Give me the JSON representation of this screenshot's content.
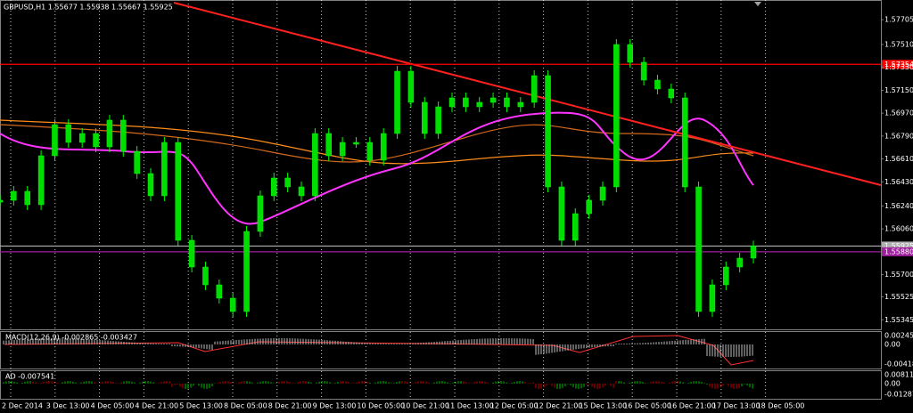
{
  "header": "GBPUSD,H1  1.55677 1.55938 1.55667 1.55925",
  "price_axis": {
    "ylim": [
      1.5527,
      1.5786
    ],
    "ticks": [
      {
        "value": 1.57705,
        "label": "1.57705"
      },
      {
        "value": 1.5751,
        "label": "1.57510"
      },
      {
        "value": 1.5733,
        "label": "1.57330"
      },
      {
        "value": 1.5715,
        "label": "1.57150"
      },
      {
        "value": 1.5697,
        "label": "1.56970"
      },
      {
        "value": 1.5679,
        "label": "1.56790"
      },
      {
        "value": 1.5661,
        "label": "1.56610"
      },
      {
        "value": 1.5643,
        "label": "1.56430"
      },
      {
        "value": 1.5624,
        "label": "1.56240"
      },
      {
        "value": 1.5606,
        "label": "1.56060"
      },
      {
        "value": 1.557,
        "label": "1.55700"
      },
      {
        "value": 1.55525,
        "label": "1.55525"
      },
      {
        "value": 1.55345,
        "label": "1.55345"
      }
    ]
  },
  "levels": [
    {
      "value": 1.57354,
      "label": "1.57354",
      "color": "#ff0000"
    },
    {
      "value": 1.55925,
      "label": "1.55925",
      "color": "#b0b0b0"
    },
    {
      "value": 1.5588,
      "label": "1.55880",
      "color": "#a020a0"
    }
  ],
  "time_axis": [
    "2 Dec 2014",
    "3 Dec 13:00",
    "4 Dec 05:00",
    "4 Dec 21:00",
    "5 Dec 13:00",
    "8 Dec 05:00",
    "8 Dec 21:00",
    "9 Dec 13:00",
    "10 Dec 05:00",
    "10 Dec 21:00",
    "11 Dec 13:00",
    "12 Dec 05:00",
    "12 Dec 21:00",
    "15 Dec 13:00",
    "16 Dec 05:00",
    "16 Dec 21:00",
    "17 Dec 13:00",
    "18 Dec 05:00"
  ],
  "price_series": [
    1.56285,
    1.56355,
    1.5625,
    1.56635,
    1.5688,
    1.5674,
    1.5681,
    1.56705,
    1.56915,
    1.5667,
    1.56495,
    1.5632,
    1.5674,
    1.5597,
    1.5576,
    1.5562,
    1.55515,
    1.5541,
    1.5604,
    1.5632,
    1.5646,
    1.5639,
    1.5632,
    1.5681,
    1.56635,
    1.5674,
    1.5674,
    1.566,
    1.5681,
    1.573,
    1.57055,
    1.5681,
    1.5702,
    1.5709,
    1.5702,
    1.57055,
    1.5709,
    1.5702,
    1.57055,
    1.57265,
    1.5639,
    1.5597,
    1.5618,
    1.56285,
    1.5639,
    1.5751,
    1.5737,
    1.5723,
    1.5716,
    1.5709,
    1.5639,
    1.5541,
    1.5562,
    1.5576,
    1.5583,
    1.55925
  ],
  "macd": {
    "label": "MACD(12,26,9) -0.002865 -0.003427",
    "ticks": [
      "0.002459",
      "0.00",
      "-0.004184"
    ]
  },
  "ad": {
    "label": "AD -0.007541",
    "ticks": [
      "0.008113",
      "0.00",
      "-0.012870"
    ]
  }
}
